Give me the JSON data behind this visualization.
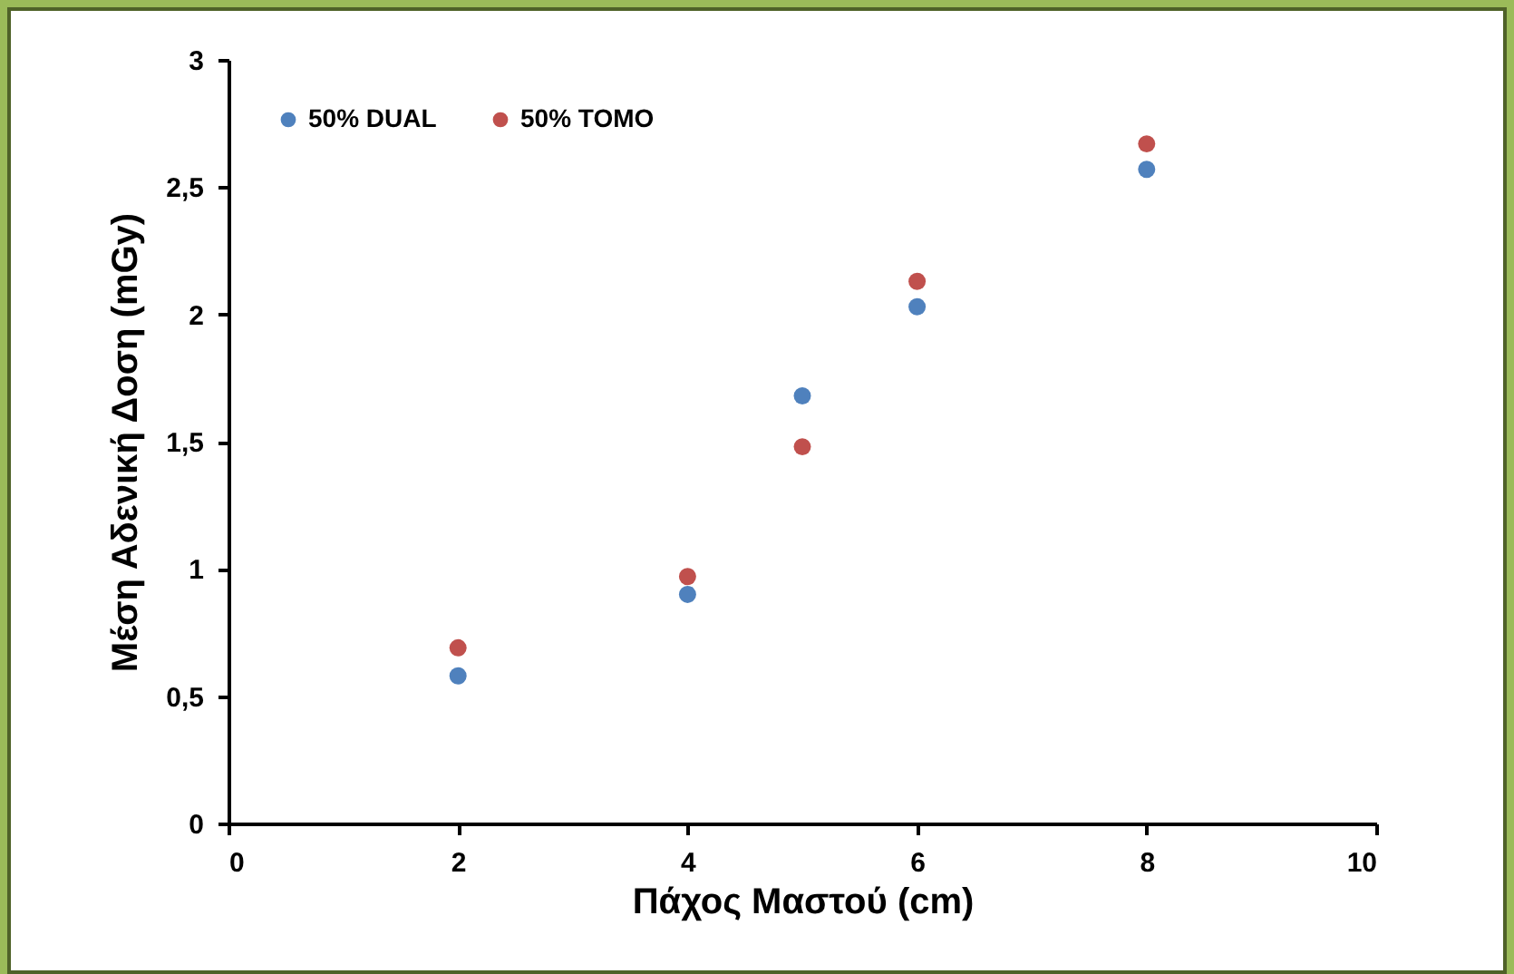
{
  "chart_data": {
    "type": "scatter",
    "xlabel": "Πάχος Μαστού (cm)",
    "ylabel": "Μέση Αδενική Δοση (mGy)",
    "x": [
      2,
      4,
      5,
      6,
      8
    ],
    "series": [
      {
        "name": "50% DUAL",
        "color": "#4f81bd",
        "values": [
          0.58,
          0.9,
          1.68,
          2.03,
          2.57
        ]
      },
      {
        "name": "50% TOMO",
        "color": "#c0504d",
        "values": [
          0.69,
          0.97,
          1.48,
          2.13,
          2.67
        ]
      }
    ],
    "xlim": [
      0,
      10
    ],
    "xticks": [
      0,
      2,
      4,
      6,
      8,
      10
    ],
    "ylim": [
      0,
      3
    ],
    "yticks": [
      0,
      {
        "value": 0.5,
        "label": "0,5"
      },
      1,
      {
        "value": 1.5,
        "label": "1,5"
      },
      2,
      {
        "value": 2.5,
        "label": "2,5"
      },
      3
    ],
    "grid": false,
    "legend": "top left",
    "marker": "circle"
  }
}
